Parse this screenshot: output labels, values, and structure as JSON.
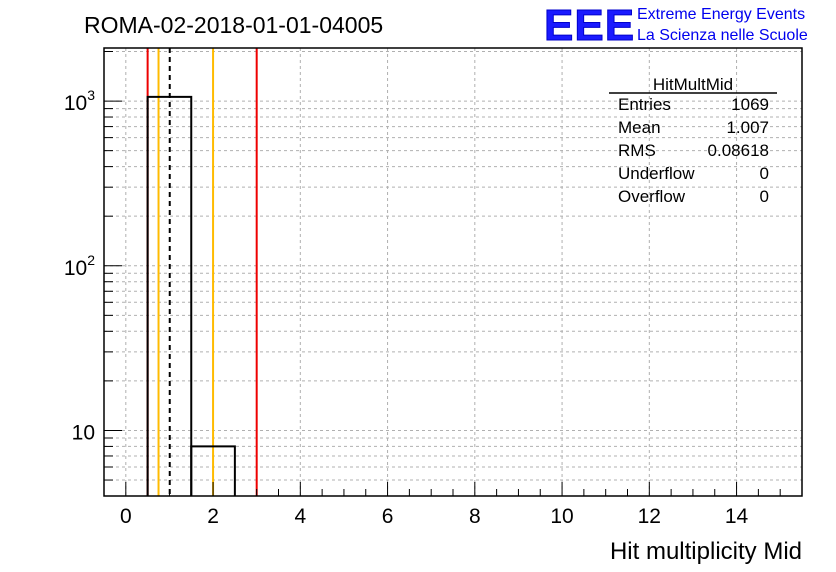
{
  "chart_data": {
    "type": "histogram",
    "title": "ROMA-02-2018-01-01-04005",
    "xlabel": "Hit multiplicity Mid",
    "ylabel": "",
    "xlim": [
      -0.5,
      15.5
    ],
    "ylim": [
      4,
      2100
    ],
    "yscale": "log",
    "grid": true,
    "x_ticks": [
      0,
      2,
      4,
      6,
      8,
      10,
      12,
      14
    ],
    "y_ticks": [
      {
        "value": 10,
        "base": "10",
        "exp": ""
      },
      {
        "value": 100,
        "base": "10",
        "exp": "2"
      },
      {
        "value": 1000,
        "base": "10",
        "exp": "3"
      }
    ],
    "bins": [
      {
        "low": 0.5,
        "high": 1.5,
        "value": 1061
      },
      {
        "low": 1.5,
        "high": 2.5,
        "value": 8
      }
    ],
    "vertical_lines": [
      {
        "x": 0.5,
        "color": "#ee0000",
        "style": "solid"
      },
      {
        "x": 0.75,
        "color": "#ffbb00",
        "style": "solid"
      },
      {
        "x": 1.007,
        "color": "#000000",
        "style": "dashed"
      },
      {
        "x": 2.0,
        "color": "#ffbb00",
        "style": "solid"
      },
      {
        "x": 3.0,
        "color": "#ee0000",
        "style": "solid"
      }
    ],
    "stats_box": {
      "title": "HitMultMid",
      "rows": [
        {
          "label": "Entries",
          "value": "1069"
        },
        {
          "label": "Mean",
          "value": "1.007"
        },
        {
          "label": "RMS",
          "value": "0.08618"
        },
        {
          "label": "Underflow",
          "value": "0"
        },
        {
          "label": "Overflow",
          "value": "0"
        }
      ]
    }
  },
  "logo": {
    "mark": "EEE",
    "line1": "Extreme Energy Events",
    "line2": "La Scienza nelle Scuole"
  }
}
